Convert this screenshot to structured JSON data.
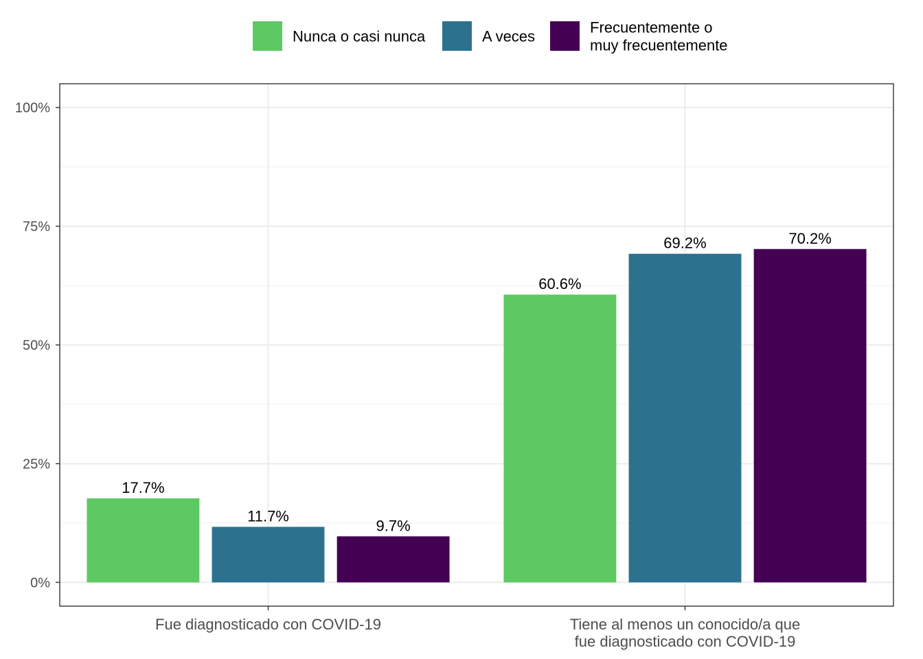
{
  "chart_data": {
    "type": "bar",
    "categories": [
      [
        "Fue diagnosticado con COVID-19"
      ],
      [
        "Tiene al menos un conocido/a que",
        "fue diagnosticado con COVID-19"
      ]
    ],
    "series": [
      {
        "name": "Nunca o casi nunca",
        "name_lines": [
          "Nunca o casi nunca"
        ],
        "color": "#5ec962",
        "values": [
          17.7,
          60.6
        ],
        "labels": [
          "17.7%",
          "60.6%"
        ]
      },
      {
        "name": "A veces",
        "name_lines": [
          "A veces"
        ],
        "color": "#2c728e",
        "values": [
          11.7,
          69.2
        ],
        "labels": [
          "11.7%",
          "69.2%"
        ]
      },
      {
        "name": "Frecuentemente o muy frecuentemente",
        "name_lines": [
          "Frecuentemente o",
          "muy frecuentemente"
        ],
        "color": "#440154",
        "values": [
          9.7,
          70.2
        ],
        "labels": [
          "9.7%",
          "70.2%"
        ]
      }
    ],
    "y_ticks": [
      0,
      25,
      50,
      75,
      100
    ],
    "y_tick_labels": [
      "0%",
      "25%",
      "50%",
      "75%",
      "100%"
    ],
    "ylim": [
      -5,
      105
    ],
    "xlabel": "",
    "ylabel": "",
    "title": "",
    "legend_position": "top",
    "grid": true
  }
}
